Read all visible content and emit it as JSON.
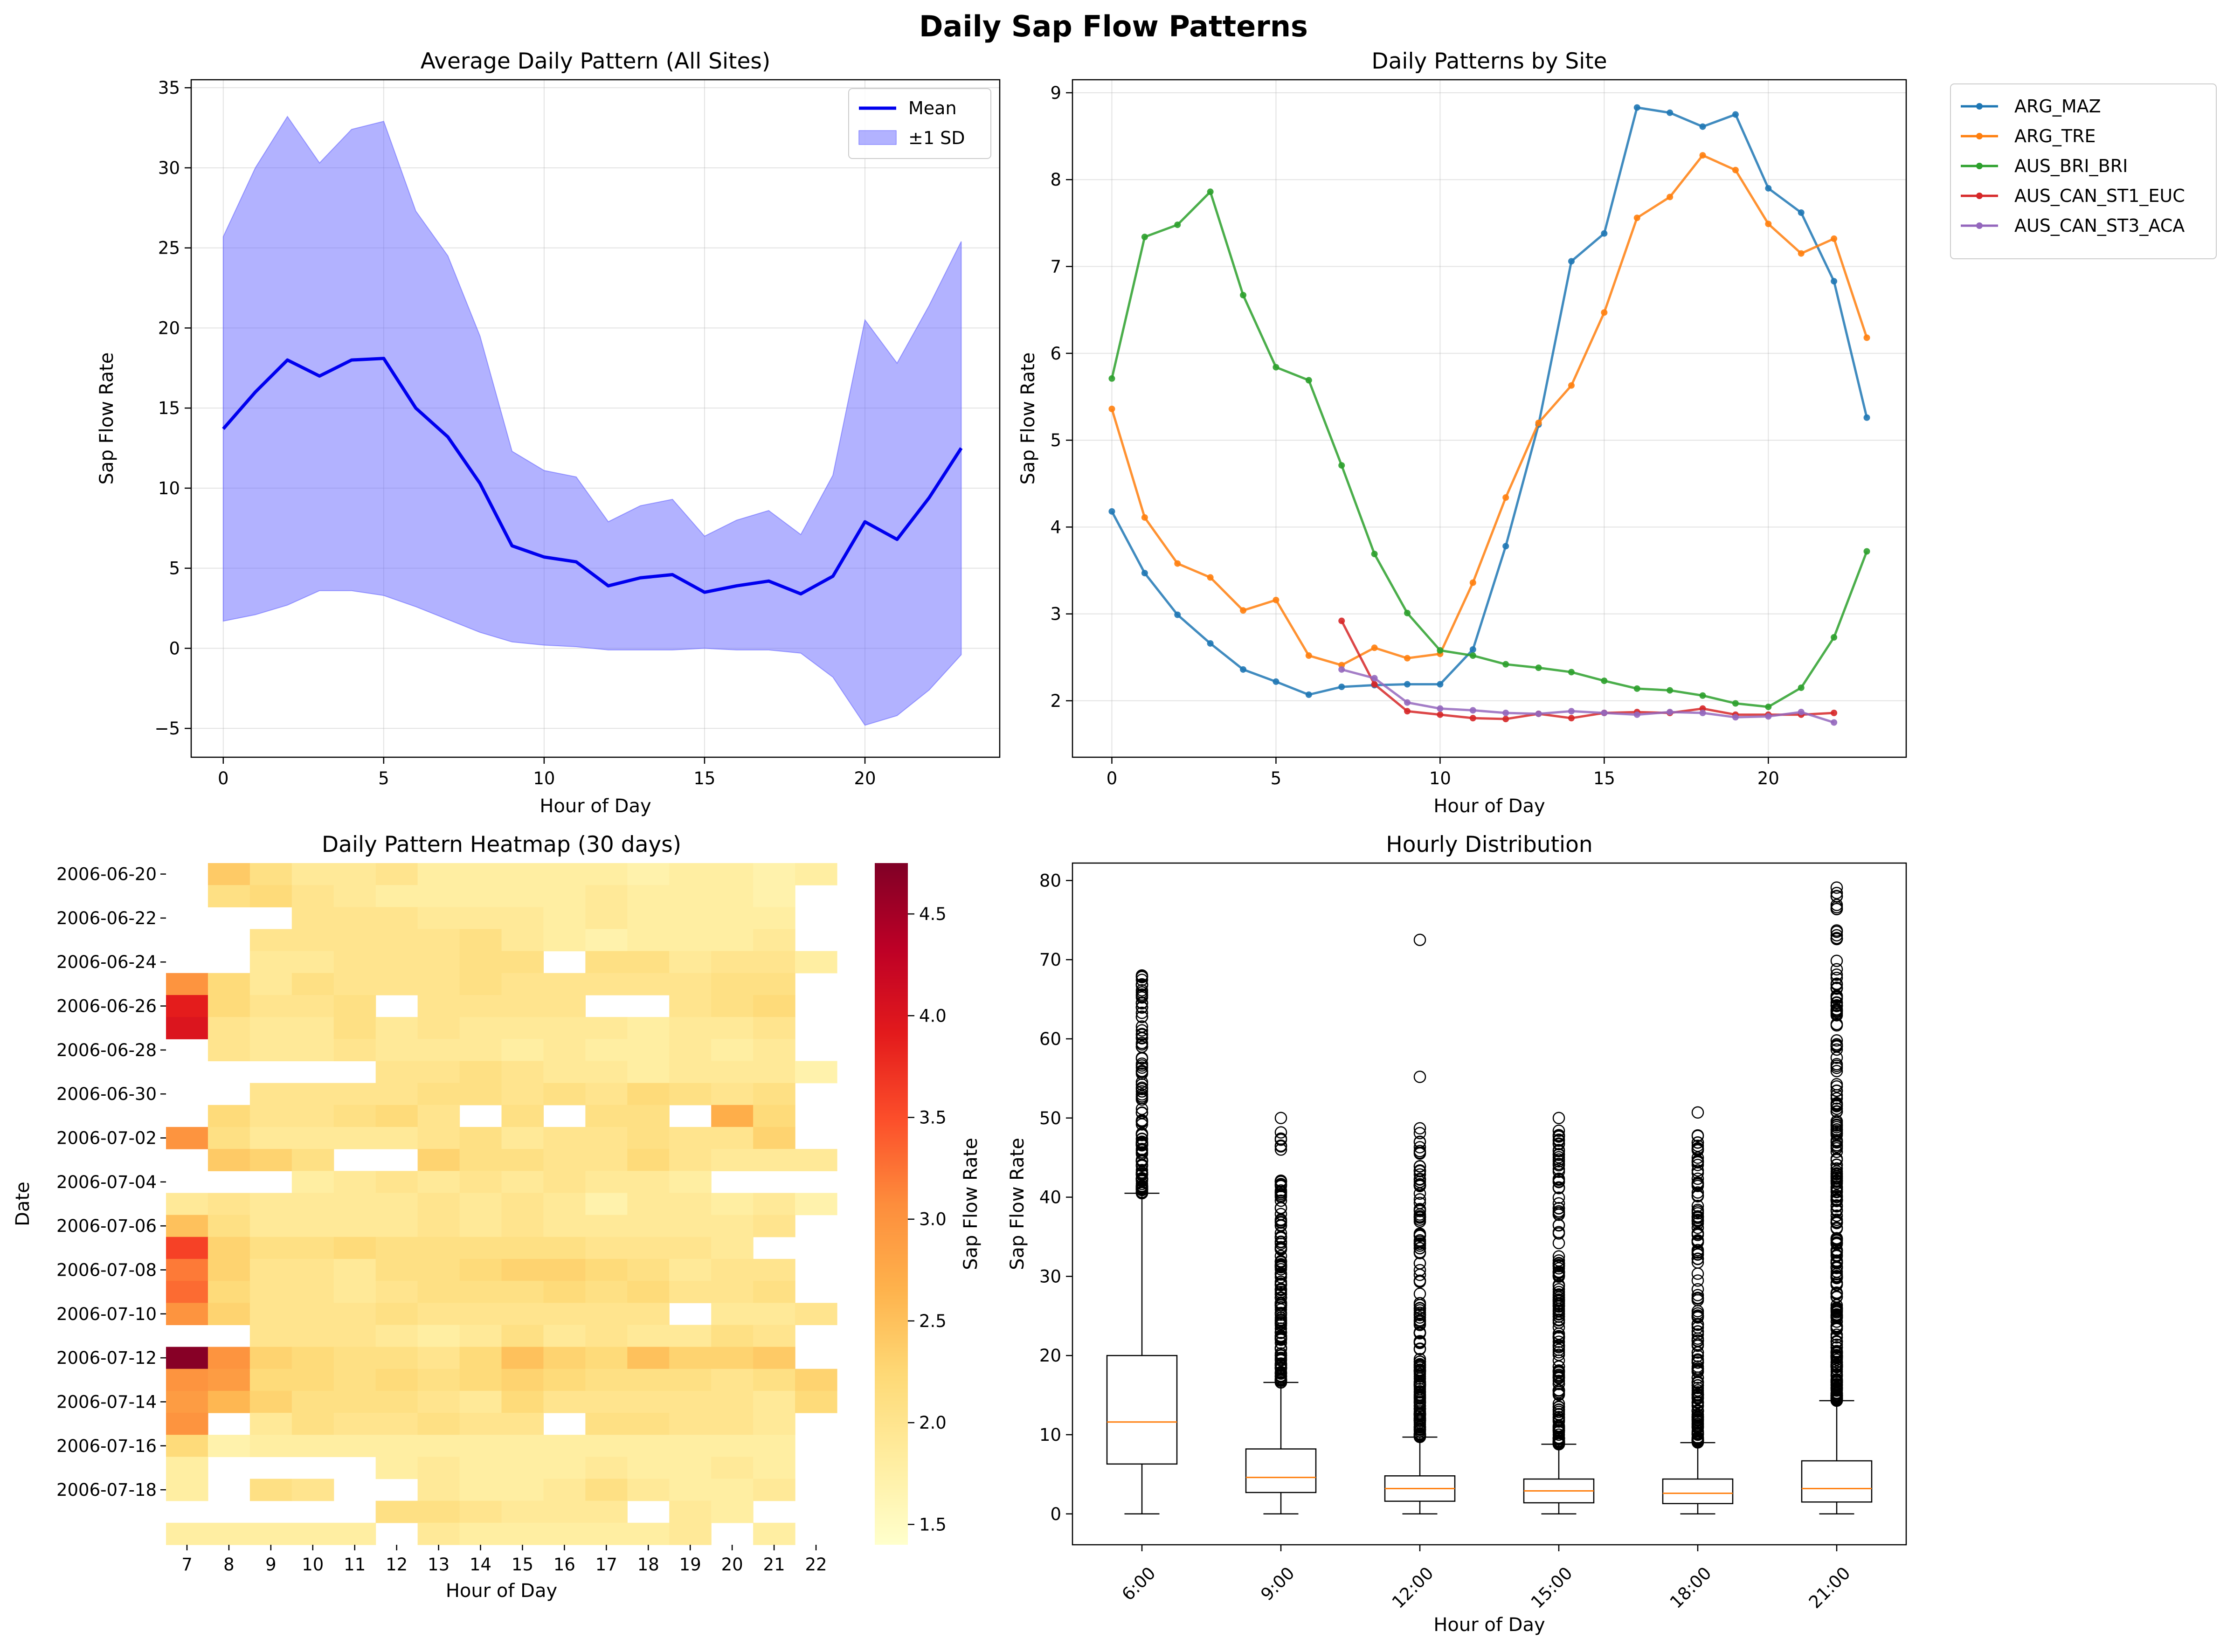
{
  "suptitle": "Daily Sap Flow Patterns",
  "colors": {
    "mean_line": "#0000ee",
    "sd_band": "#6666ff",
    "grid": "#b0b0b0",
    "box_median": "#ff7f0e",
    "heatmap_scale": [
      "#ffffcc",
      "#ffeda0",
      "#fed976",
      "#feb24c",
      "#fd8d3c",
      "#fc4e2a",
      "#e31a1c",
      "#bd0026",
      "#800026"
    ]
  },
  "chart_data": [
    {
      "id": "avg",
      "type": "area",
      "title": "Average Daily Pattern (All Sites)",
      "xlabel": "Hour of Day",
      "ylabel": "Sap Flow Rate",
      "xlim": [
        -1,
        24.2
      ],
      "ylim": [
        -6.8,
        35.5
      ],
      "xticks": [
        0,
        5,
        10,
        15,
        20
      ],
      "yticks": [
        -5,
        0,
        5,
        10,
        15,
        20,
        25,
        30,
        35
      ],
      "grid": true,
      "legend": {
        "position": "upper right",
        "entries": [
          "Mean",
          "±1 SD"
        ]
      },
      "x": [
        0,
        1,
        2,
        3,
        4,
        5,
        6,
        7,
        8,
        9,
        10,
        11,
        12,
        13,
        14,
        15,
        16,
        17,
        18,
        19,
        20,
        21,
        22,
        23
      ],
      "mean": [
        13.7,
        16.0,
        18.0,
        17.0,
        18.0,
        18.1,
        15.0,
        13.2,
        10.3,
        6.4,
        5.7,
        5.4,
        3.9,
        4.4,
        4.6,
        3.5,
        3.9,
        4.2,
        3.4,
        4.5,
        7.9,
        6.8,
        9.4,
        12.5
      ],
      "upper": [
        25.7,
        30.0,
        33.2,
        30.3,
        32.4,
        32.9,
        27.3,
        24.5,
        19.5,
        12.3,
        11.1,
        10.7,
        7.9,
        8.9,
        9.3,
        7.0,
        8.0,
        8.6,
        7.1,
        10.8,
        20.5,
        17.8,
        21.4,
        25.4
      ],
      "lower": [
        1.7,
        2.1,
        2.7,
        3.6,
        3.6,
        3.3,
        2.6,
        1.8,
        1.0,
        0.4,
        0.2,
        0.1,
        -0.1,
        -0.1,
        -0.1,
        0.0,
        -0.1,
        -0.1,
        -0.3,
        -1.8,
        -4.8,
        -4.2,
        -2.6,
        -0.4
      ]
    },
    {
      "id": "sites",
      "type": "line",
      "title": "Daily Patterns by Site",
      "xlabel": "Hour of Day",
      "ylabel": "Sap Flow Rate",
      "xlim": [
        -1.2,
        24.2
      ],
      "ylim": [
        1.35,
        9.15
      ],
      "xticks": [
        0,
        5,
        10,
        15,
        20
      ],
      "yticks": [
        2,
        3,
        4,
        5,
        6,
        7,
        8,
        9
      ],
      "grid": true,
      "legend": {
        "position": "outside upper right"
      },
      "series": [
        {
          "name": "ARG_MAZ",
          "color": "#1f77b4",
          "x": [
            0,
            1,
            2,
            3,
            4,
            5,
            6,
            7,
            8,
            9,
            10,
            11,
            12,
            13,
            14,
            15,
            16,
            17,
            18,
            19,
            20,
            21,
            22,
            23
          ],
          "values": [
            4.18,
            3.47,
            2.99,
            2.66,
            2.36,
            2.22,
            2.07,
            2.16,
            2.18,
            2.19,
            2.19,
            2.59,
            3.78,
            5.18,
            7.06,
            7.38,
            8.83,
            8.77,
            8.61,
            8.75,
            7.9,
            7.62,
            6.83,
            5.26
          ]
        },
        {
          "name": "ARG_TRE",
          "color": "#ff7f0e",
          "x": [
            0,
            1,
            2,
            3,
            4,
            5,
            6,
            7,
            8,
            9,
            10,
            11,
            12,
            13,
            14,
            15,
            16,
            17,
            18,
            19,
            20,
            21,
            22,
            23
          ],
          "values": [
            5.36,
            4.11,
            3.58,
            3.42,
            3.04,
            3.16,
            2.52,
            2.41,
            2.61,
            2.49,
            2.54,
            3.36,
            4.34,
            5.2,
            5.63,
            6.47,
            7.56,
            7.8,
            8.28,
            8.11,
            7.49,
            7.15,
            7.32,
            6.18
          ]
        },
        {
          "name": "AUS_BRI_BRI",
          "color": "#2ca02c",
          "x": [
            0,
            1,
            2,
            3,
            4,
            5,
            6,
            7,
            8,
            9,
            10,
            11,
            12,
            13,
            14,
            15,
            16,
            17,
            18,
            19,
            20,
            21,
            22,
            23
          ],
          "values": [
            5.71,
            7.34,
            7.48,
            7.86,
            6.67,
            5.84,
            5.69,
            4.71,
            3.69,
            3.01,
            2.58,
            2.52,
            2.42,
            2.38,
            2.33,
            2.23,
            2.14,
            2.12,
            2.06,
            1.97,
            1.93,
            2.15,
            2.73,
            3.72
          ]
        },
        {
          "name": "AUS_CAN_ST1_EUC",
          "color": "#d62728",
          "x": [
            7,
            8,
            9,
            10,
            11,
            12,
            13,
            14,
            15,
            16,
            17,
            18,
            19,
            20,
            21,
            22
          ],
          "values": [
            2.92,
            2.19,
            1.88,
            1.84,
            1.8,
            1.79,
            1.85,
            1.8,
            1.86,
            1.87,
            1.86,
            1.91,
            1.84,
            1.84,
            1.84,
            1.86
          ]
        },
        {
          "name": "AUS_CAN_ST3_ACA",
          "color": "#9467bd",
          "x": [
            7,
            8,
            9,
            10,
            11,
            12,
            13,
            14,
            15,
            16,
            17,
            18,
            19,
            20,
            21,
            22
          ],
          "values": [
            2.36,
            2.26,
            1.98,
            1.91,
            1.89,
            1.86,
            1.85,
            1.88,
            1.86,
            1.84,
            1.87,
            1.86,
            1.81,
            1.82,
            1.87,
            1.75
          ]
        }
      ]
    },
    {
      "id": "heat",
      "type": "heatmap",
      "title": "Daily Pattern Heatmap (30 days)",
      "xlabel": "Hour of Day",
      "ylabel": "Date",
      "colorbar_label": "Sap Flow Rate",
      "colorbar_range": [
        1.4,
        4.75
      ],
      "colorbar_ticks": [
        "1.5",
        "2.0",
        "2.5",
        "3.0",
        "3.5",
        "4.0",
        "4.5"
      ],
      "x_categories": [
        "7",
        "8",
        "9",
        "10",
        "11",
        "12",
        "13",
        "14",
        "15",
        "16",
        "17",
        "18",
        "19",
        "20",
        "21",
        "22"
      ],
      "y_tick_labels": [
        "2006-06-20",
        "2006-06-22",
        "2006-06-24",
        "2006-06-26",
        "2006-06-28",
        "2006-06-30",
        "2006-07-02",
        "2006-07-04",
        "2006-07-06",
        "2006-07-08",
        "2006-07-10",
        "2006-07-12",
        "2006-07-14",
        "2006-07-16",
        "2006-07-18"
      ],
      "y_tick_every": 2,
      "values": [
        [
          null,
          2.4,
          2.1,
          1.9,
          1.9,
          2.0,
          1.8,
          1.8,
          1.8,
          1.8,
          1.8,
          1.7,
          1.8,
          1.8,
          1.7,
          1.8
        ],
        [
          null,
          2.1,
          2.2,
          2.0,
          1.9,
          1.8,
          1.8,
          1.8,
          1.8,
          1.8,
          1.9,
          1.8,
          1.8,
          1.8,
          1.7,
          null
        ],
        [
          null,
          null,
          null,
          2.0,
          2.0,
          2.0,
          1.9,
          1.9,
          1.9,
          1.8,
          1.9,
          1.8,
          1.8,
          1.8,
          1.8,
          null
        ],
        [
          null,
          null,
          2.0,
          2.0,
          2.0,
          2.0,
          2.0,
          2.1,
          1.9,
          1.8,
          1.7,
          1.8,
          1.8,
          1.8,
          1.9,
          null
        ],
        [
          null,
          null,
          1.9,
          1.9,
          2.0,
          2.0,
          2.0,
          2.1,
          2.1,
          null,
          2.1,
          2.1,
          1.9,
          2.0,
          2.0,
          1.8
        ],
        [
          3.0,
          2.2,
          1.9,
          2.1,
          2.0,
          2.0,
          2.0,
          2.1,
          2.0,
          2.0,
          2.0,
          2.0,
          2.0,
          2.1,
          2.1,
          null
        ],
        [
          3.9,
          2.2,
          2.0,
          2.0,
          2.1,
          null,
          2.0,
          2.0,
          2.0,
          2.0,
          null,
          null,
          2.0,
          2.1,
          2.2,
          null
        ],
        [
          4.0,
          2.0,
          1.9,
          1.9,
          2.1,
          1.9,
          2.0,
          1.9,
          1.9,
          1.9,
          1.9,
          1.8,
          1.9,
          1.9,
          2.0,
          null
        ],
        [
          null,
          2.0,
          1.9,
          1.9,
          2.0,
          1.9,
          1.9,
          1.9,
          1.8,
          1.9,
          1.8,
          1.8,
          1.9,
          1.8,
          1.9,
          null
        ],
        [
          null,
          null,
          null,
          null,
          null,
          2.0,
          2.0,
          2.1,
          2.0,
          1.9,
          1.9,
          1.8,
          1.9,
          1.9,
          1.9,
          1.7
        ],
        [
          null,
          null,
          2.0,
          2.0,
          2.0,
          2.0,
          2.1,
          2.1,
          2.0,
          2.1,
          2.0,
          2.2,
          2.1,
          2.0,
          2.1,
          null
        ],
        [
          null,
          2.2,
          2.0,
          2.0,
          2.1,
          2.2,
          2.0,
          null,
          2.1,
          null,
          2.1,
          2.1,
          null,
          2.7,
          2.2,
          null
        ],
        [
          3.0,
          2.1,
          1.9,
          1.9,
          1.9,
          1.9,
          2.0,
          2.1,
          1.9,
          2.0,
          2.0,
          2.1,
          2.0,
          2.0,
          2.3,
          null
        ],
        [
          null,
          2.4,
          2.3,
          2.1,
          null,
          null,
          2.3,
          2.1,
          2.1,
          2.0,
          2.0,
          2.2,
          2.0,
          1.9,
          1.9,
          1.9
        ],
        [
          null,
          null,
          null,
          1.8,
          1.9,
          2.0,
          1.9,
          2.0,
          1.9,
          2.0,
          1.9,
          1.9,
          1.8,
          null,
          null,
          null
        ],
        [
          1.9,
          2.0,
          1.9,
          1.9,
          1.9,
          1.9,
          2.0,
          1.9,
          2.0,
          1.9,
          1.7,
          1.9,
          1.9,
          1.8,
          1.9,
          1.7
        ],
        [
          2.5,
          2.1,
          1.9,
          1.9,
          1.9,
          1.9,
          2.0,
          1.9,
          2.0,
          1.9,
          1.9,
          1.9,
          1.9,
          1.9,
          2.0,
          null
        ],
        [
          3.6,
          2.3,
          2.1,
          2.1,
          2.2,
          2.1,
          2.1,
          2.1,
          2.1,
          2.1,
          2.0,
          2.0,
          2.0,
          1.9,
          null,
          null
        ],
        [
          3.2,
          2.3,
          2.0,
          2.0,
          1.9,
          2.1,
          2.1,
          2.2,
          2.3,
          2.3,
          2.2,
          2.1,
          1.9,
          2.0,
          2.0,
          null
        ],
        [
          3.3,
          2.2,
          2.0,
          2.0,
          1.9,
          2.0,
          2.1,
          2.1,
          2.1,
          2.2,
          2.1,
          2.2,
          2.0,
          2.0,
          2.1,
          null
        ],
        [
          3.0,
          2.3,
          2.0,
          2.0,
          2.0,
          2.1,
          2.0,
          2.0,
          2.0,
          2.0,
          2.0,
          2.0,
          null,
          1.9,
          1.9,
          2.0
        ],
        [
          null,
          null,
          2.0,
          2.0,
          2.0,
          1.9,
          1.8,
          1.9,
          2.1,
          1.9,
          2.0,
          1.9,
          1.9,
          2.1,
          2.0,
          null
        ],
        [
          4.7,
          3.0,
          2.3,
          2.2,
          2.1,
          2.1,
          2.0,
          2.2,
          2.5,
          2.3,
          2.2,
          2.5,
          2.3,
          2.3,
          2.4,
          null
        ],
        [
          3.0,
          2.9,
          2.2,
          2.2,
          2.1,
          2.2,
          2.1,
          2.2,
          2.3,
          2.2,
          2.1,
          2.1,
          2.1,
          2.0,
          2.1,
          2.3
        ],
        [
          2.9,
          2.6,
          2.3,
          2.1,
          2.1,
          2.1,
          2.0,
          1.9,
          2.2,
          2.0,
          2.0,
          2.0,
          2.0,
          2.0,
          1.9,
          2.2
        ],
        [
          3.0,
          null,
          1.9,
          2.1,
          2.0,
          2.0,
          2.1,
          2.0,
          2.0,
          null,
          2.1,
          2.1,
          2.0,
          2.0,
          1.9,
          null
        ],
        [
          2.2,
          1.7,
          1.8,
          1.8,
          1.8,
          1.8,
          1.8,
          1.8,
          1.8,
          1.8,
          1.8,
          1.8,
          1.8,
          1.8,
          1.8,
          null
        ],
        [
          1.8,
          null,
          null,
          null,
          null,
          1.8,
          1.9,
          1.8,
          1.8,
          1.8,
          1.9,
          1.8,
          1.8,
          1.9,
          1.8,
          null
        ],
        [
          1.8,
          null,
          2.1,
          2.0,
          null,
          null,
          1.9,
          1.8,
          1.8,
          1.9,
          2.1,
          1.9,
          1.8,
          1.8,
          1.9,
          null
        ],
        [
          null,
          null,
          null,
          null,
          null,
          2.1,
          2.1,
          2.0,
          1.9,
          1.9,
          1.9,
          null,
          1.9,
          1.8,
          null,
          null
        ],
        [
          1.8,
          1.8,
          1.8,
          1.8,
          1.8,
          null,
          1.9,
          1.8,
          1.8,
          1.8,
          1.8,
          1.8,
          1.9,
          null,
          1.8,
          null
        ]
      ]
    },
    {
      "id": "box",
      "type": "box",
      "title": "Hourly Distribution",
      "xlabel": "Hour of Day",
      "ylabel": "Sap Flow Rate",
      "ylim": [
        -3.9,
        82.2
      ],
      "yticks": [
        0,
        10,
        20,
        30,
        40,
        50,
        60,
        70,
        80
      ],
      "categories": [
        "6:00",
        "9:00",
        "12:00",
        "15:00",
        "18:00",
        "21:00"
      ],
      "boxes": [
        {
          "whislo": 0,
          "q1": 6.3,
          "median": 11.6,
          "q3": 20.0,
          "whishi": 40.5,
          "fliers_range": [
            40.5,
            68.0
          ],
          "fliers_top": [
            65.6,
            67.8
          ]
        },
        {
          "whislo": 0,
          "q1": 2.7,
          "median": 4.6,
          "q3": 8.2,
          "whishi": 16.6,
          "fliers_range": [
            16.6,
            50.0
          ],
          "fliers_top": []
        },
        {
          "whislo": 0,
          "q1": 1.6,
          "median": 3.2,
          "q3": 4.8,
          "whishi": 9.7,
          "fliers_range": [
            9.7,
            48.7
          ],
          "fliers_top": [
            55.2,
            72.5
          ]
        },
        {
          "whislo": 0,
          "q1": 1.4,
          "median": 2.9,
          "q3": 4.4,
          "whishi": 8.8,
          "fliers_range": [
            8.8,
            50.0
          ],
          "fliers_top": []
        },
        {
          "whislo": 0,
          "q1": 1.3,
          "median": 2.6,
          "q3": 4.4,
          "whishi": 9.0,
          "fliers_range": [
            9.0,
            47.8
          ],
          "fliers_top": [
            50.7
          ]
        },
        {
          "whislo": 0,
          "q1": 1.5,
          "median": 3.2,
          "q3": 6.7,
          "whishi": 14.3,
          "fliers_range": [
            14.3,
            79.1
          ],
          "fliers_top": []
        }
      ]
    }
  ]
}
